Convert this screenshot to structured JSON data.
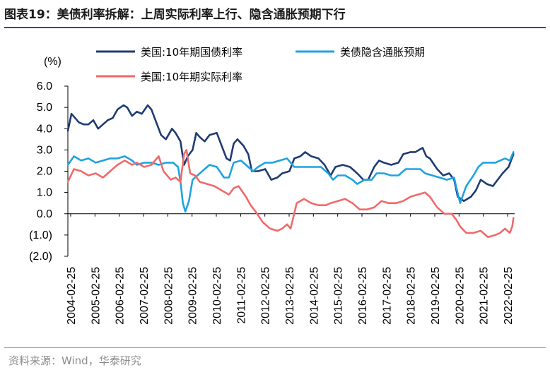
{
  "title": "图表19：美债利率拆解：上周实际利率上行、隐含通胀预期下行",
  "source": "资料来源：Wind，华泰研究",
  "chart_data": {
    "type": "line",
    "ylabel": "(%)",
    "ylim": [
      -2.0,
      6.0
    ],
    "yticks": [
      6.0,
      5.0,
      4.0,
      3.0,
      2.0,
      1.0,
      0.0,
      -1.0,
      -2.0
    ],
    "ytick_labels": [
      "6.0",
      "5.0",
      "4.0",
      "3.0",
      "2.0",
      "1.0",
      "0.0",
      "(1.0)",
      "(2.0)"
    ],
    "xlim": [
      2004.15,
      2022.6
    ],
    "xtick_labels": [
      "2004-02-25",
      "2005-02-25",
      "2006-02-25",
      "2007-02-25",
      "2008-02-25",
      "2009-02-25",
      "2010-02-25",
      "2011-02-25",
      "2012-02-25",
      "2013-02-25",
      "2014-02-25",
      "2015-02-25",
      "2016-02-25",
      "2017-02-25",
      "2018-02-25",
      "2019-02-25",
      "2020-02-25",
      "2021-02-25",
      "2022-02-25"
    ],
    "series": [
      {
        "name": "美国:10年期国债利率",
        "color": "#1f3b73",
        "x": [
          2004.15,
          2004.3,
          2004.45,
          2004.6,
          2004.8,
          2005.0,
          2005.2,
          2005.4,
          2005.6,
          2005.8,
          2006.0,
          2006.2,
          2006.45,
          2006.6,
          2006.8,
          2007.0,
          2007.2,
          2007.45,
          2007.6,
          2007.8,
          2008.0,
          2008.2,
          2008.45,
          2008.6,
          2008.8,
          2008.95,
          2009.1,
          2009.3,
          2009.45,
          2009.6,
          2009.8,
          2010.0,
          2010.3,
          2010.5,
          2010.7,
          2010.85,
          2011.0,
          2011.15,
          2011.4,
          2011.6,
          2011.75,
          2012.0,
          2012.3,
          2012.55,
          2012.8,
          2013.0,
          2013.3,
          2013.5,
          2013.75,
          2013.95,
          2014.2,
          2014.5,
          2014.75,
          2015.0,
          2015.2,
          2015.5,
          2015.8,
          2016.1,
          2016.35,
          2016.55,
          2016.8,
          2017.0,
          2017.2,
          2017.5,
          2017.8,
          2018.0,
          2018.3,
          2018.5,
          2018.8,
          2018.95,
          2019.1,
          2019.4,
          2019.65,
          2019.9,
          2020.1,
          2020.25,
          2020.5,
          2020.8,
          2021.0,
          2021.2,
          2021.45,
          2021.7,
          2021.9,
          2022.1,
          2022.35,
          2022.55
        ],
        "y": [
          3.9,
          4.7,
          4.5,
          4.3,
          4.2,
          4.2,
          4.4,
          4.0,
          4.2,
          4.4,
          4.5,
          4.9,
          5.1,
          5.0,
          4.6,
          4.8,
          4.7,
          5.1,
          4.9,
          4.3,
          3.7,
          3.5,
          4.0,
          3.8,
          3.4,
          2.3,
          2.7,
          3.0,
          3.8,
          3.6,
          3.4,
          3.7,
          3.8,
          3.2,
          2.6,
          2.5,
          3.3,
          3.5,
          3.2,
          2.8,
          2.0,
          2.0,
          2.1,
          1.6,
          1.7,
          1.9,
          2.0,
          2.6,
          2.7,
          2.9,
          2.7,
          2.6,
          2.3,
          1.8,
          2.2,
          2.3,
          2.2,
          1.9,
          1.6,
          1.6,
          2.2,
          2.5,
          2.4,
          2.3,
          2.4,
          2.8,
          2.9,
          2.9,
          3.1,
          2.7,
          2.6,
          2.1,
          1.8,
          1.9,
          1.6,
          0.8,
          0.6,
          0.8,
          1.1,
          1.6,
          1.4,
          1.3,
          1.6,
          1.9,
          2.2,
          2.8
        ]
      },
      {
        "name": "美债隐含通胀预期",
        "color": "#1fa3e0",
        "x": [
          2004.15,
          2004.4,
          2004.7,
          2005.0,
          2005.3,
          2005.6,
          2005.9,
          2006.2,
          2006.5,
          2006.8,
          2007.0,
          2007.3,
          2007.6,
          2007.9,
          2008.2,
          2008.5,
          2008.7,
          2008.8,
          2008.9,
          2009.0,
          2009.15,
          2009.3,
          2009.5,
          2009.8,
          2010.0,
          2010.3,
          2010.6,
          2010.8,
          2011.0,
          2011.3,
          2011.6,
          2011.8,
          2012.0,
          2012.3,
          2012.6,
          2012.9,
          2013.2,
          2013.5,
          2013.8,
          2014.0,
          2014.3,
          2014.6,
          2014.9,
          2015.1,
          2015.3,
          2015.6,
          2015.9,
          2016.1,
          2016.4,
          2016.7,
          2016.9,
          2017.2,
          2017.5,
          2017.8,
          2018.1,
          2018.4,
          2018.7,
          2018.9,
          2019.2,
          2019.5,
          2019.8,
          2020.1,
          2020.2,
          2020.35,
          2020.6,
          2020.9,
          2021.1,
          2021.3,
          2021.5,
          2021.8,
          2022.0,
          2022.2,
          2022.4,
          2022.55
        ],
        "y": [
          2.3,
          2.7,
          2.5,
          2.6,
          2.4,
          2.5,
          2.6,
          2.6,
          2.7,
          2.5,
          2.3,
          2.4,
          2.4,
          2.3,
          2.4,
          2.4,
          2.2,
          1.5,
          0.5,
          0.1,
          0.6,
          1.6,
          1.8,
          2.1,
          2.3,
          2.2,
          1.7,
          1.7,
          2.4,
          2.5,
          2.2,
          2.0,
          2.2,
          2.4,
          2.4,
          2.5,
          2.6,
          2.2,
          2.2,
          2.2,
          2.2,
          2.2,
          1.9,
          1.6,
          1.8,
          1.8,
          1.6,
          1.4,
          1.6,
          1.6,
          1.9,
          1.9,
          1.8,
          1.8,
          2.1,
          2.1,
          2.1,
          1.9,
          1.8,
          1.7,
          1.6,
          1.7,
          1.2,
          0.5,
          1.3,
          1.8,
          2.2,
          2.4,
          2.4,
          2.4,
          2.5,
          2.6,
          2.5,
          2.9
        ]
      },
      {
        "name": "美国:10年期实际利率",
        "color": "#f06a6a",
        "x": [
          2004.15,
          2004.4,
          2004.7,
          2005.0,
          2005.3,
          2005.6,
          2005.9,
          2006.2,
          2006.5,
          2006.8,
          2007.0,
          2007.3,
          2007.6,
          2007.9,
          2008.1,
          2008.4,
          2008.6,
          2008.8,
          2008.95,
          2009.05,
          2009.2,
          2009.4,
          2009.6,
          2009.9,
          2010.2,
          2010.5,
          2010.8,
          2011.0,
          2011.2,
          2011.5,
          2011.7,
          2011.9,
          2012.2,
          2012.5,
          2012.8,
          2013.0,
          2013.2,
          2013.35,
          2013.6,
          2013.9,
          2014.2,
          2014.5,
          2014.8,
          2015.0,
          2015.3,
          2015.6,
          2015.9,
          2016.2,
          2016.5,
          2016.8,
          2017.1,
          2017.4,
          2017.7,
          2018.0,
          2018.3,
          2018.6,
          2018.9,
          2019.1,
          2019.4,
          2019.7,
          2020.0,
          2020.2,
          2020.35,
          2020.6,
          2020.9,
          2021.2,
          2021.5,
          2021.8,
          2022.0,
          2022.2,
          2022.4,
          2022.5,
          2022.55
        ],
        "y": [
          1.5,
          2.1,
          2.0,
          1.8,
          1.9,
          1.7,
          2.0,
          2.3,
          2.5,
          2.3,
          2.4,
          2.2,
          2.3,
          2.7,
          2.0,
          1.6,
          1.7,
          1.5,
          2.8,
          3.0,
          1.9,
          1.8,
          1.5,
          1.4,
          1.3,
          1.1,
          0.9,
          1.2,
          1.3,
          0.8,
          0.4,
          0.1,
          -0.4,
          -0.7,
          -0.8,
          -0.7,
          -0.5,
          -0.7,
          0.5,
          0.7,
          0.5,
          0.4,
          0.4,
          0.5,
          0.6,
          0.7,
          0.5,
          0.2,
          0.2,
          0.3,
          0.6,
          0.5,
          0.5,
          0.6,
          0.8,
          0.9,
          1.0,
          0.8,
          0.3,
          0.0,
          0.0,
          -0.3,
          -0.6,
          -0.9,
          -0.9,
          -0.8,
          -1.1,
          -1.0,
          -0.9,
          -0.7,
          -0.9,
          -0.6,
          -0.2
        ]
      }
    ]
  }
}
